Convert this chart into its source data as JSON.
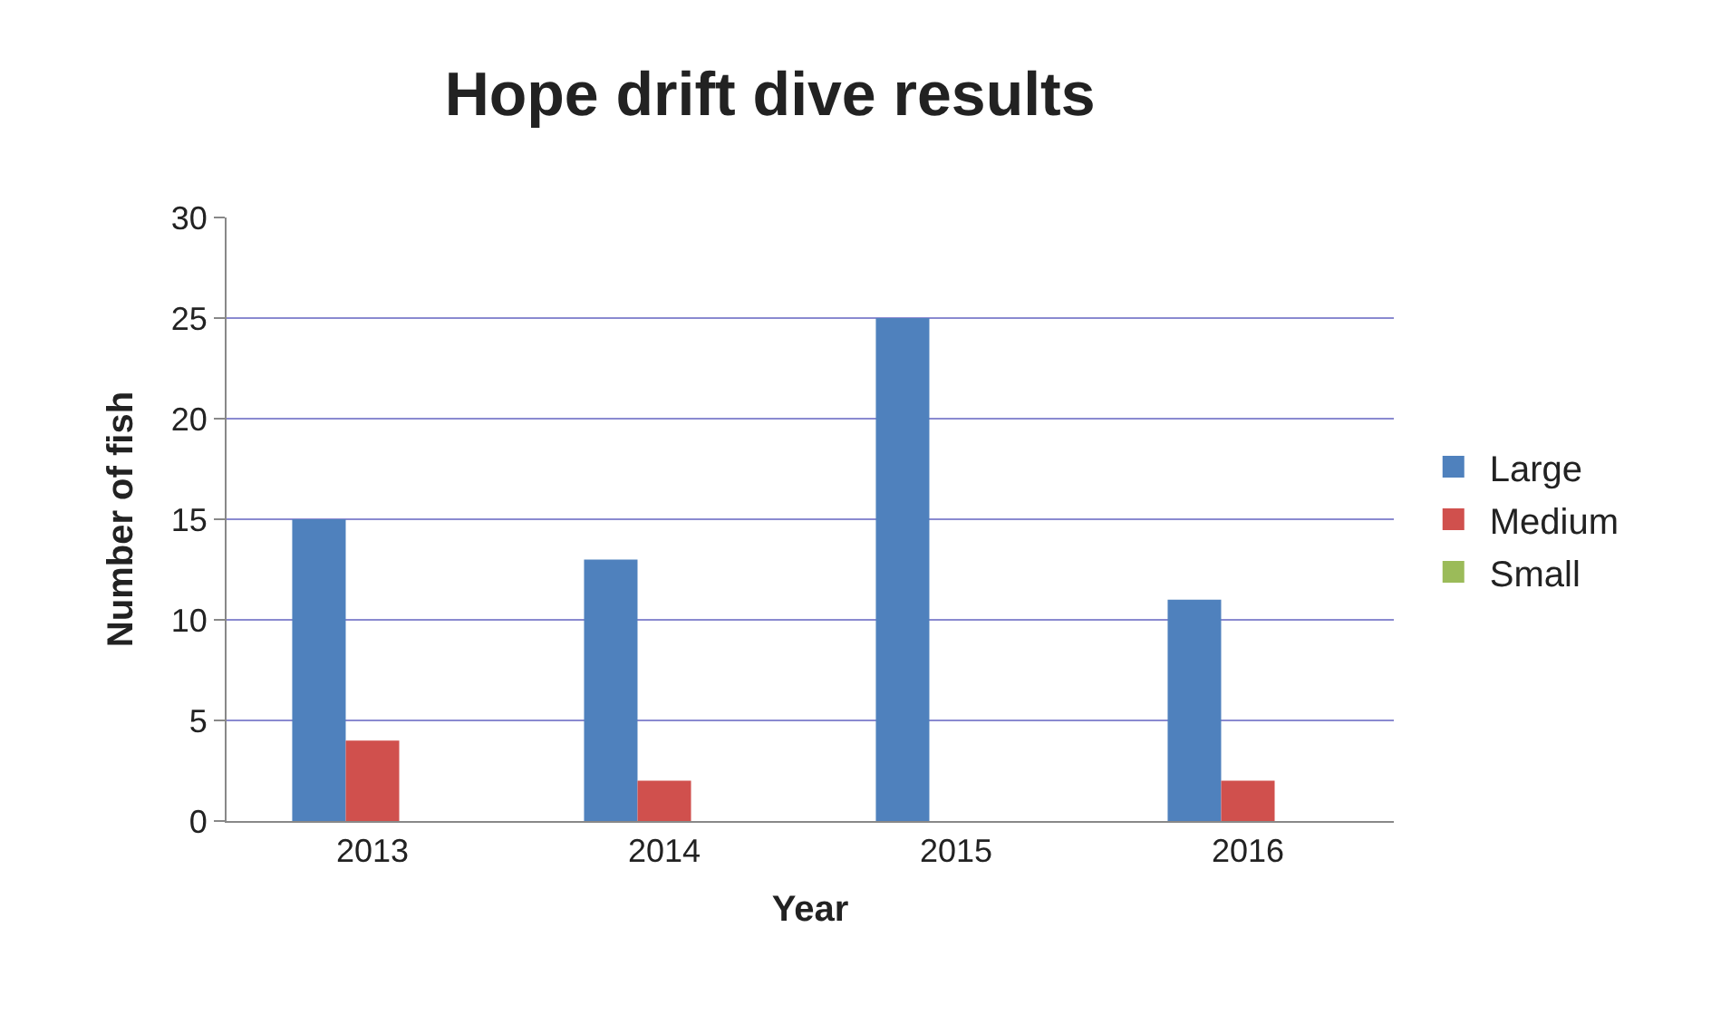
{
  "chart_data": {
    "type": "bar",
    "title": "Hope drift dive results",
    "xlabel": "Year",
    "ylabel": "Number of fish",
    "categories": [
      "2013",
      "2014",
      "2015",
      "2016"
    ],
    "series": [
      {
        "name": "Large",
        "color": "#4f81bd",
        "values": [
          15,
          13,
          25,
          11
        ]
      },
      {
        "name": "Medium",
        "color": "#d0504d",
        "values": [
          4,
          2,
          0,
          2
        ]
      },
      {
        "name": "Small",
        "color": "#9bbb59",
        "values": [
          0,
          0,
          0,
          0
        ]
      }
    ],
    "ylim": [
      0,
      30
    ],
    "yticks": [
      0,
      5,
      10,
      15,
      20,
      25,
      30
    ],
    "grid": "y",
    "legend": "right"
  }
}
